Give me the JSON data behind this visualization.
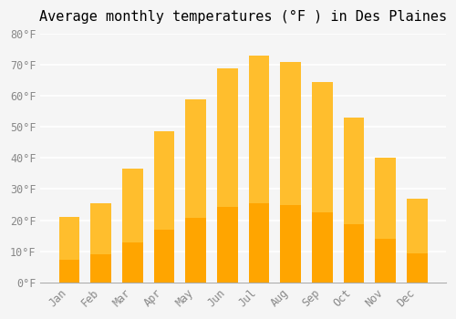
{
  "title": "Average monthly temperatures (°F ) in Des Plaines",
  "months": [
    "Jan",
    "Feb",
    "Mar",
    "Apr",
    "May",
    "Jun",
    "Jul",
    "Aug",
    "Sep",
    "Oct",
    "Nov",
    "Dec"
  ],
  "values": [
    21,
    25.5,
    36.5,
    48.5,
    59,
    69,
    73,
    71,
    64.5,
    53,
    40,
    27
  ],
  "bar_color_top": "#FFBE2D",
  "bar_color_bottom": "#FFA500",
  "bar_edge_color": "none",
  "ylim": [
    0,
    80
  ],
  "ytick_step": 10,
  "background_color": "#f5f5f5",
  "grid_color": "#ffffff",
  "title_fontsize": 11,
  "tick_fontsize": 8.5,
  "font_family": "monospace"
}
